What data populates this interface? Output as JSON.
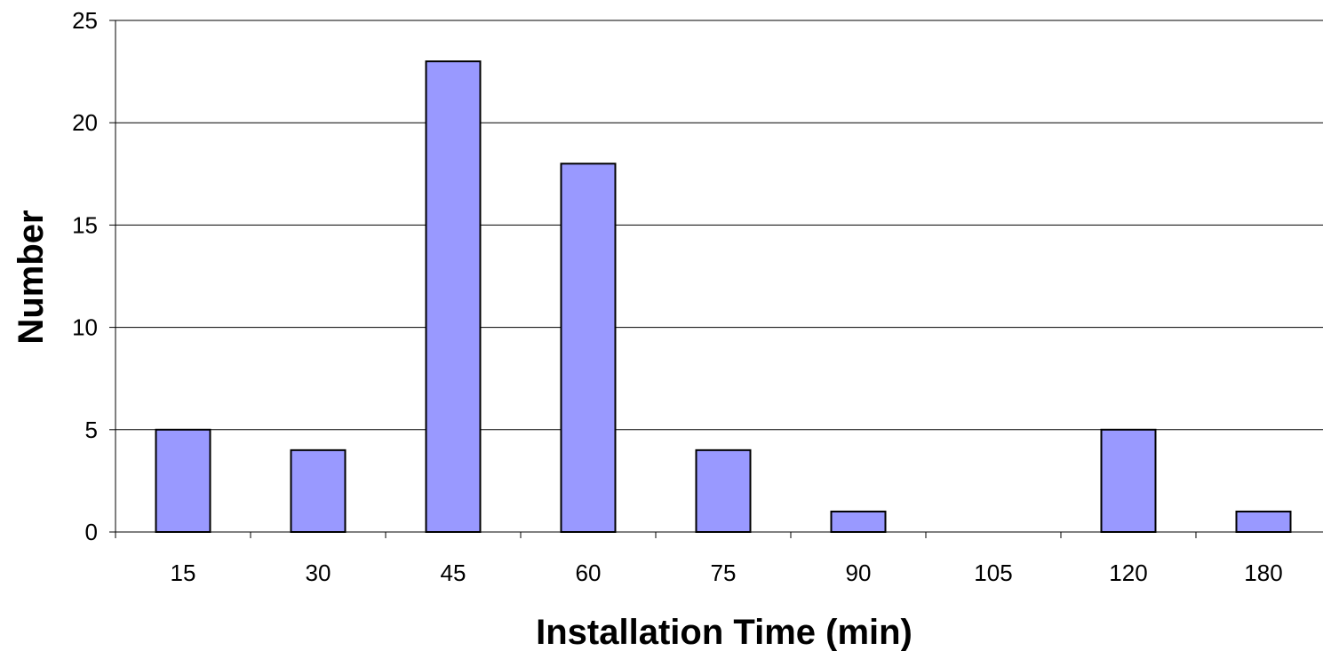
{
  "chart_data": {
    "type": "bar",
    "categories": [
      "15",
      "30",
      "45",
      "60",
      "75",
      "90",
      "105",
      "120",
      "180"
    ],
    "values": [
      5,
      4,
      23,
      18,
      4,
      1,
      0,
      5,
      1
    ],
    "title": "",
    "xlabel": "Installation Time (min)",
    "ylabel": "Number",
    "ylim": [
      0,
      25
    ],
    "yticks": [
      0,
      5,
      10,
      15,
      20,
      25
    ],
    "grid": true,
    "legend": "none",
    "colors": {
      "bar_fill": "#9999ff",
      "bar_stroke": "#000000",
      "grid": "#000000",
      "axis": "#000000",
      "background": "#ffffff"
    }
  }
}
